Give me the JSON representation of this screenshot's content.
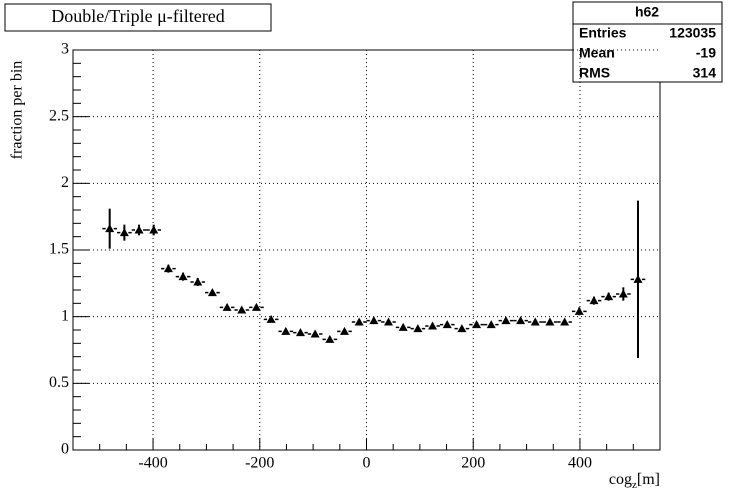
{
  "chart_data": {
    "type": "errorbar",
    "title": "Double/Triple μ-filtered",
    "y_label": "fraction per bin",
    "x_label": [
      "cog",
      "z",
      "[m]"
    ],
    "stats": {
      "name": "h62",
      "rows": [
        [
          "Entries",
          "123035"
        ],
        [
          "Mean",
          "-19"
        ],
        [
          "RMS",
          "314"
        ]
      ]
    },
    "xlim": [
      -550,
      550
    ],
    "ylim": [
      0,
      3
    ],
    "xticks": [
      -400,
      -200,
      0,
      200,
      400
    ],
    "yticks": [
      0,
      0.5,
      1,
      1.5,
      2,
      2.5,
      3
    ],
    "xminor": [
      -500,
      -450,
      -350,
      -300,
      -250,
      -150,
      -100,
      -50,
      50,
      100,
      150,
      250,
      300,
      350,
      450,
      500
    ],
    "yminor": [
      0.1,
      0.2,
      0.3,
      0.4,
      0.6,
      0.7,
      0.8,
      0.9,
      1.1,
      1.2,
      1.3,
      1.4,
      1.6,
      1.7,
      1.8,
      1.9,
      2.1,
      2.2,
      2.3,
      2.4,
      2.6,
      2.7,
      2.8,
      2.9
    ],
    "grid": true,
    "bin_width": 27.5,
    "color": "#000000",
    "x": [
      -481.25,
      -453.75,
      -426.25,
      -398.75,
      -371.25,
      -343.75,
      -316.25,
      -288.75,
      -261.25,
      -233.75,
      -206.25,
      -178.75,
      -151.25,
      -123.75,
      -96.25,
      -68.75,
      -41.25,
      -13.75,
      13.75,
      41.25,
      68.75,
      96.25,
      123.75,
      151.25,
      178.75,
      206.25,
      233.75,
      261.25,
      288.75,
      316.25,
      343.75,
      371.25,
      398.75,
      426.25,
      453.75,
      481.25,
      508.75
    ],
    "values": [
      1.66,
      1.63,
      1.65,
      1.65,
      1.36,
      1.3,
      1.26,
      1.18,
      1.07,
      1.05,
      1.07,
      0.98,
      0.89,
      0.88,
      0.87,
      0.83,
      0.89,
      0.96,
      0.97,
      0.96,
      0.92,
      0.91,
      0.93,
      0.94,
      0.91,
      0.94,
      0.94,
      0.97,
      0.97,
      0.96,
      0.96,
      0.96,
      1.04,
      1.12,
      1.15,
      1.17,
      1.28
    ],
    "errors": [
      0.15,
      0.06,
      0.04,
      0.04,
      0.03,
      0.03,
      0.03,
      0.02,
      0.02,
      0.02,
      0.02,
      0.02,
      0.02,
      0.02,
      0.02,
      0.02,
      0.02,
      0.02,
      0.02,
      0.02,
      0.02,
      0.02,
      0.02,
      0.02,
      0.02,
      0.02,
      0.02,
      0.02,
      0.02,
      0.02,
      0.02,
      0.02,
      0.03,
      0.03,
      0.03,
      0.05,
      0.59
    ]
  }
}
